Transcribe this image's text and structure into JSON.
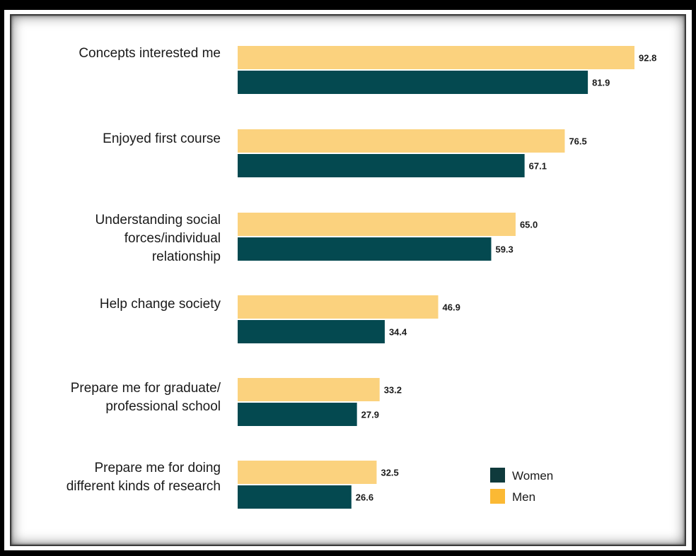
{
  "chart_data": {
    "type": "bar",
    "orientation": "horizontal",
    "categories": [
      [
        "Concepts interested me"
      ],
      [
        "Enjoyed first course"
      ],
      [
        "Understanding social",
        "forces/individual",
        "relationship"
      ],
      [
        "Help change society"
      ],
      [
        "Prepare me for graduate/",
        "professional school"
      ],
      [
        "Prepare me for doing",
        "different kinds of research"
      ]
    ],
    "series": [
      {
        "name": "Men",
        "color": "#fbd27e",
        "values": [
          92.8,
          76.5,
          65.0,
          46.9,
          33.2,
          32.5
        ],
        "labels": [
          "92.8",
          "76.5",
          "65.0",
          "46.9",
          "33.2",
          "32.5"
        ]
      },
      {
        "name": "Women",
        "color": "#044950",
        "values": [
          81.9,
          67.1,
          59.3,
          34.4,
          27.9,
          26.6
        ],
        "labels": [
          "81.9",
          "67.1",
          "59.3",
          "34.4",
          "27.9",
          "26.6"
        ]
      }
    ],
    "xlim": [
      0,
      100
    ],
    "grid": false,
    "legend": {
      "placement": "bottom-right",
      "entries": [
        {
          "name": "Women",
          "color": "#0f3a3c"
        },
        {
          "name": "Men",
          "color": "#fbb934"
        }
      ]
    }
  }
}
